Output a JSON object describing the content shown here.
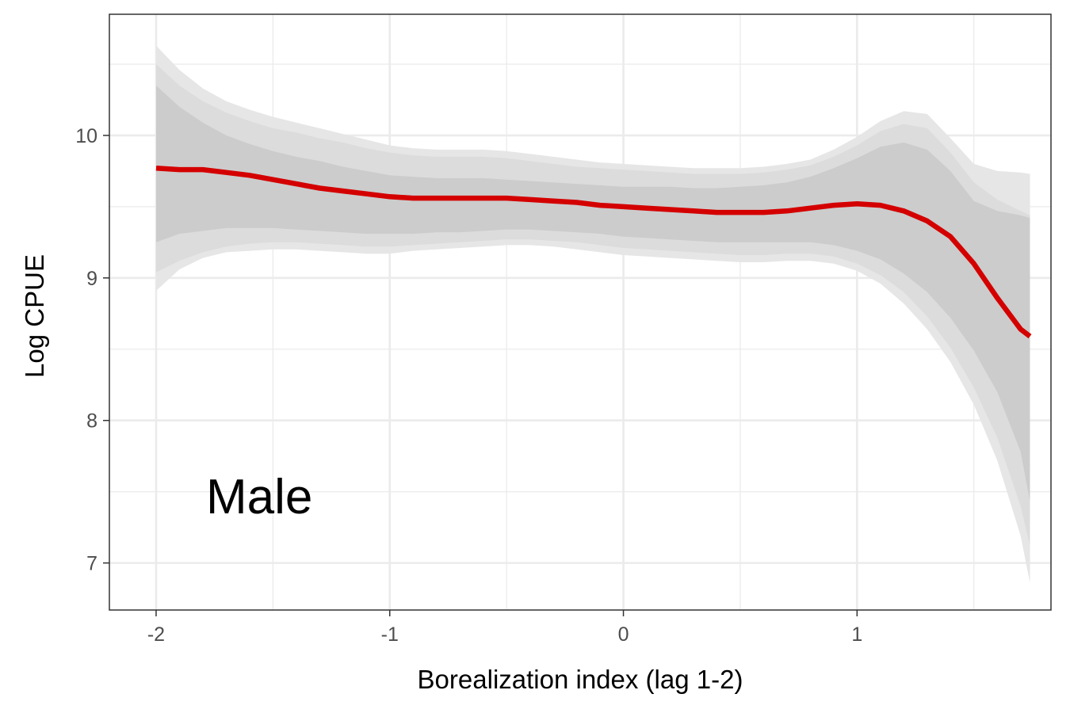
{
  "chart_data": {
    "type": "line",
    "xlabel": "Borealization index (lag 1-2)",
    "ylabel": "Log CPUE",
    "annotation": "Male",
    "xlim": [
      -2.2,
      1.83
    ],
    "ylim": [
      6.67,
      10.85
    ],
    "x_ticks": [
      -2,
      -1,
      0,
      1
    ],
    "x_tick_labels": [
      "-2",
      "-1",
      "0",
      "1"
    ],
    "y_ticks": [
      7,
      8,
      9,
      10
    ],
    "y_tick_labels": [
      "7",
      "8",
      "9",
      "10"
    ],
    "grid": true,
    "theme": "bw",
    "colors": {
      "line": "#d40000",
      "band_outer": "#e6e6e6",
      "band_middle": "#dcdcdc",
      "band_inner": "#cccccc",
      "grid": "#ebebeb",
      "border": "#333333"
    },
    "x": [
      -2.0,
      -1.9,
      -1.8,
      -1.7,
      -1.6,
      -1.5,
      -1.4,
      -1.3,
      -1.2,
      -1.1,
      -1.0,
      -0.9,
      -0.8,
      -0.7,
      -0.6,
      -0.5,
      -0.4,
      -0.3,
      -0.2,
      -0.1,
      0.0,
      0.1,
      0.2,
      0.3,
      0.4,
      0.5,
      0.6,
      0.7,
      0.8,
      0.9,
      1.0,
      1.1,
      1.2,
      1.3,
      1.4,
      1.5,
      1.6,
      1.7,
      1.74
    ],
    "series": [
      {
        "values": [
          9.77,
          9.76,
          9.76,
          9.74,
          9.72,
          9.69,
          9.66,
          9.63,
          9.61,
          9.59,
          9.57,
          9.56,
          9.56,
          9.56,
          9.56,
          9.56,
          9.55,
          9.54,
          9.53,
          9.51,
          9.5,
          9.49,
          9.48,
          9.47,
          9.46,
          9.46,
          9.46,
          9.47,
          9.49,
          9.51,
          9.52,
          9.51,
          9.47,
          9.4,
          9.29,
          9.1,
          8.86,
          8.64,
          8.59
        ],
        "bands": [
          {
            "lower": [
              8.91,
              9.06,
              9.14,
              9.18,
              9.19,
              9.2,
              9.2,
              9.19,
              9.18,
              9.17,
              9.17,
              9.19,
              9.2,
              9.21,
              9.22,
              9.23,
              9.23,
              9.22,
              9.2,
              9.18,
              9.16,
              9.15,
              9.14,
              9.13,
              9.12,
              9.11,
              9.11,
              9.12,
              9.12,
              9.1,
              9.05,
              8.96,
              8.82,
              8.64,
              8.41,
              8.11,
              7.72,
              7.19,
              6.86
            ],
            "upper": [
              10.63,
              10.46,
              10.33,
              10.24,
              10.18,
              10.13,
              10.09,
              10.05,
              10.01,
              9.97,
              9.93,
              9.91,
              9.9,
              9.9,
              9.9,
              9.89,
              9.87,
              9.85,
              9.83,
              9.81,
              9.8,
              9.79,
              9.78,
              9.77,
              9.77,
              9.77,
              9.78,
              9.8,
              9.83,
              9.9,
              9.99,
              10.1,
              10.17,
              10.15,
              9.98,
              9.8,
              9.75,
              9.74,
              9.73
            ]
          },
          {
            "lower": [
              9.04,
              9.12,
              9.18,
              9.22,
              9.24,
              9.25,
              9.25,
              9.24,
              9.23,
              9.22,
              9.22,
              9.23,
              9.24,
              9.25,
              9.26,
              9.27,
              9.27,
              9.26,
              9.25,
              9.23,
              9.21,
              9.2,
              9.19,
              9.18,
              9.17,
              9.16,
              9.16,
              9.17,
              9.17,
              9.15,
              9.1,
              9.02,
              8.9,
              8.73,
              8.51,
              8.23,
              7.88,
              7.4,
              7.12
            ],
            "upper": [
              10.5,
              10.35,
              10.24,
              10.16,
              10.1,
              10.05,
              10.02,
              9.98,
              9.95,
              9.91,
              9.88,
              9.86,
              9.85,
              9.85,
              9.85,
              9.84,
              9.82,
              9.8,
              9.78,
              9.77,
              9.76,
              9.75,
              9.74,
              9.73,
              9.73,
              9.73,
              9.74,
              9.76,
              9.79,
              9.85,
              9.93,
              10.03,
              10.08,
              10.05,
              9.88,
              9.67,
              9.55,
              9.47,
              9.44
            ]
          },
          {
            "lower": [
              9.25,
              9.31,
              9.33,
              9.35,
              9.35,
              9.35,
              9.34,
              9.33,
              9.32,
              9.31,
              9.31,
              9.31,
              9.32,
              9.32,
              9.33,
              9.34,
              9.34,
              9.33,
              9.32,
              9.31,
              9.29,
              9.28,
              9.27,
              9.26,
              9.25,
              9.25,
              9.25,
              9.25,
              9.25,
              9.23,
              9.19,
              9.13,
              9.03,
              8.9,
              8.72,
              8.49,
              8.2,
              7.78,
              7.43
            ],
            "upper": [
              10.35,
              10.2,
              10.09,
              10.0,
              9.94,
              9.89,
              9.85,
              9.82,
              9.78,
              9.75,
              9.72,
              9.71,
              9.7,
              9.7,
              9.7,
              9.69,
              9.68,
              9.67,
              9.66,
              9.65,
              9.64,
              9.64,
              9.64,
              9.63,
              9.63,
              9.64,
              9.65,
              9.67,
              9.71,
              9.77,
              9.84,
              9.92,
              9.95,
              9.9,
              9.75,
              9.54,
              9.47,
              9.44,
              9.42
            ]
          }
        ]
      }
    ]
  }
}
